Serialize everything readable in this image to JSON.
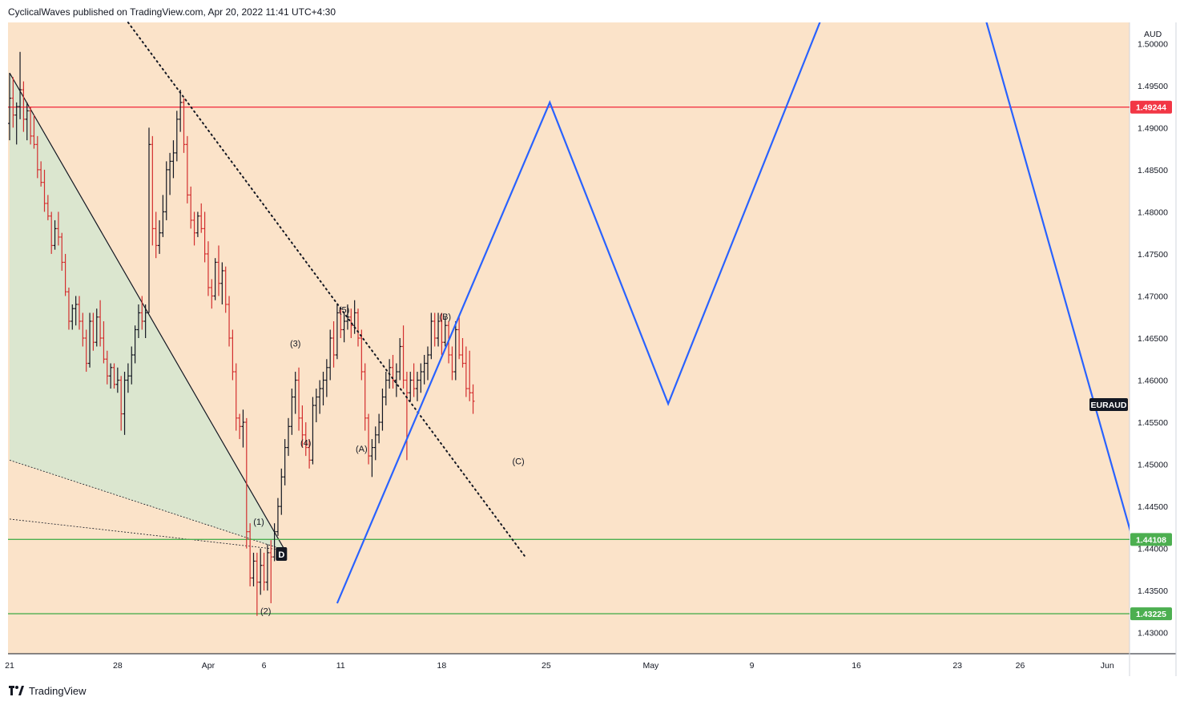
{
  "header": {
    "attribution": "CyclicalWaves published on TradingView.com, Apr 20, 2022 11:41 UTC+4:30"
  },
  "footer": {
    "brand": "TradingView"
  },
  "colors": {
    "background_plot": "#fbe3c9",
    "up_bar": "#131722",
    "down_bar": "#d32f2f",
    "red_level": "#f23645",
    "green_level": "#4caf50",
    "projection": "#2962ff",
    "wedge_fill": "#d7e6cf"
  },
  "chart_data": {
    "type": "ohlc",
    "symbol_tag": "EURAUD",
    "currency": "AUD",
    "y_range": [
      1.4275,
      1.5025
    ],
    "y_ticks": [
      "1.50000",
      "1.49500",
      "1.49000",
      "1.48500",
      "1.48000",
      "1.47500",
      "1.47000",
      "1.46500",
      "1.46000",
      "1.45500",
      "1.45000",
      "1.44500",
      "1.44000",
      "1.43500",
      "1.43000"
    ],
    "x_axis_labels": [
      {
        "label": "21",
        "x_index": 0
      },
      {
        "label": "28",
        "x_index": 31
      },
      {
        "label": "Apr",
        "x_index": 57
      },
      {
        "label": "6",
        "x_index": 73
      },
      {
        "label": "11",
        "x_index": 95
      },
      {
        "label": "18",
        "x_index": 124
      },
      {
        "label": "25",
        "x_index": 154
      },
      {
        "label": "May",
        "x_index": 184
      },
      {
        "label": "9",
        "x_index": 213
      },
      {
        "label": "16",
        "x_index": 243
      },
      {
        "label": "23",
        "x_index": 272
      },
      {
        "label": "26",
        "x_index": 290
      },
      {
        "label": "Jun",
        "x_index": 315
      }
    ],
    "price_levels": [
      {
        "name": "resistance",
        "value": 1.49244,
        "label": "1.49244",
        "color": "#f23645"
      },
      {
        "name": "support-upper",
        "value": 1.44108,
        "label": "1.44108",
        "color": "#4caf50"
      },
      {
        "name": "support-lower",
        "value": 1.43225,
        "label": "1.43225",
        "color": "#4caf50"
      }
    ],
    "wave_labels": [
      {
        "text": "(1)",
        "x_index": 71.5,
        "y": 1.4428
      },
      {
        "text": "(2)",
        "x_index": 73.5,
        "y": 1.4322
      },
      {
        "text": "(3)",
        "x_index": 82,
        "y": 1.464
      },
      {
        "text": "(4)",
        "x_index": 85,
        "y": 1.4522
      },
      {
        "text": "(5)",
        "x_index": 96,
        "y": 1.468
      },
      {
        "text": "(A)",
        "x_index": 101,
        "y": 1.4515
      },
      {
        "text": "(B)",
        "x_index": 125,
        "y": 1.4672
      },
      {
        "text": "(C)",
        "x_index": 146,
        "y": 1.45
      }
    ],
    "pattern_marker": {
      "text": "D",
      "x_index": 78,
      "y": 1.4393
    },
    "projection_path": [
      {
        "x_index": 94,
        "y": 1.4335
      },
      {
        "x_index": 155,
        "y": 1.493
      },
      {
        "x_index": 189,
        "y": 1.4572
      },
      {
        "x_index": 233,
        "y": 1.503
      },
      {
        "x_index": 280,
        "y": 1.503
      },
      {
        "x_index": 322,
        "y": 1.4415
      }
    ],
    "dotted_trendline": [
      {
        "x_index": 34,
        "y": 1.5025
      },
      {
        "x_index": 148,
        "y": 1.439
      }
    ],
    "wedge_upper": [
      {
        "x_index": 0,
        "y": 1.4965
      },
      {
        "x_index": 79,
        "y": 1.4398
      }
    ],
    "wedge_lower_1": [
      {
        "x_index": 0,
        "y": 1.4505
      },
      {
        "x_index": 79,
        "y": 1.4398
      }
    ],
    "wedge_lower_2": [
      {
        "x_index": 0,
        "y": 1.4435
      },
      {
        "x_index": 79,
        "y": 1.4398
      }
    ],
    "bars": [
      {
        "o": 1.4905,
        "h": 1.4965,
        "l": 1.4885,
        "c": 1.4935
      },
      {
        "o": 1.4935,
        "h": 1.496,
        "l": 1.49,
        "c": 1.4915
      },
      {
        "o": 1.4915,
        "h": 1.493,
        "l": 1.488,
        "c": 1.4925
      },
      {
        "o": 1.4925,
        "h": 1.499,
        "l": 1.491,
        "c": 1.4945
      },
      {
        "o": 1.4945,
        "h": 1.4955,
        "l": 1.4895,
        "c": 1.491
      },
      {
        "o": 1.491,
        "h": 1.493,
        "l": 1.4885,
        "c": 1.492
      },
      {
        "o": 1.492,
        "h": 1.4925,
        "l": 1.488,
        "c": 1.489
      },
      {
        "o": 1.489,
        "h": 1.4915,
        "l": 1.4875,
        "c": 1.488
      },
      {
        "o": 1.488,
        "h": 1.489,
        "l": 1.484,
        "c": 1.485
      },
      {
        "o": 1.485,
        "h": 1.486,
        "l": 1.483,
        "c": 1.4835
      },
      {
        "o": 1.4835,
        "h": 1.485,
        "l": 1.48,
        "c": 1.481
      },
      {
        "o": 1.481,
        "h": 1.482,
        "l": 1.479,
        "c": 1.4795
      },
      {
        "o": 1.4795,
        "h": 1.48,
        "l": 1.475,
        "c": 1.476
      },
      {
        "o": 1.476,
        "h": 1.479,
        "l": 1.4755,
        "c": 1.478
      },
      {
        "o": 1.478,
        "h": 1.48,
        "l": 1.476,
        "c": 1.477
      },
      {
        "o": 1.477,
        "h": 1.4775,
        "l": 1.473,
        "c": 1.474
      },
      {
        "o": 1.474,
        "h": 1.475,
        "l": 1.47,
        "c": 1.4705
      },
      {
        "o": 1.4705,
        "h": 1.471,
        "l": 1.466,
        "c": 1.467
      },
      {
        "o": 1.467,
        "h": 1.469,
        "l": 1.466,
        "c": 1.4685
      },
      {
        "o": 1.4685,
        "h": 1.47,
        "l": 1.4665,
        "c": 1.469
      },
      {
        "o": 1.469,
        "h": 1.47,
        "l": 1.466,
        "c": 1.467
      },
      {
        "o": 1.467,
        "h": 1.468,
        "l": 1.464,
        "c": 1.465
      },
      {
        "o": 1.465,
        "h": 1.466,
        "l": 1.461,
        "c": 1.462
      },
      {
        "o": 1.462,
        "h": 1.468,
        "l": 1.4615,
        "c": 1.467
      },
      {
        "o": 1.467,
        "h": 1.468,
        "l": 1.4635,
        "c": 1.4645
      },
      {
        "o": 1.4645,
        "h": 1.4685,
        "l": 1.464,
        "c": 1.4675
      },
      {
        "o": 1.4675,
        "h": 1.4695,
        "l": 1.464,
        "c": 1.465
      },
      {
        "o": 1.465,
        "h": 1.467,
        "l": 1.462,
        "c": 1.4625
      },
      {
        "o": 1.4625,
        "h": 1.4635,
        "l": 1.4595,
        "c": 1.4605
      },
      {
        "o": 1.4605,
        "h": 1.462,
        "l": 1.459,
        "c": 1.4615
      },
      {
        "o": 1.4615,
        "h": 1.462,
        "l": 1.459,
        "c": 1.4595
      },
      {
        "o": 1.4595,
        "h": 1.4615,
        "l": 1.4585,
        "c": 1.46
      },
      {
        "o": 1.46,
        "h": 1.4605,
        "l": 1.454,
        "c": 1.456
      },
      {
        "o": 1.456,
        "h": 1.461,
        "l": 1.4535,
        "c": 1.46
      },
      {
        "o": 1.46,
        "h": 1.462,
        "l": 1.4585,
        "c": 1.4605
      },
      {
        "o": 1.4605,
        "h": 1.464,
        "l": 1.4595,
        "c": 1.463
      },
      {
        "o": 1.463,
        "h": 1.4665,
        "l": 1.462,
        "c": 1.466
      },
      {
        "o": 1.466,
        "h": 1.469,
        "l": 1.465,
        "c": 1.468
      },
      {
        "o": 1.468,
        "h": 1.47,
        "l": 1.466,
        "c": 1.467
      },
      {
        "o": 1.467,
        "h": 1.469,
        "l": 1.465,
        "c": 1.468
      },
      {
        "o": 1.468,
        "h": 1.49,
        "l": 1.468,
        "c": 1.488
      },
      {
        "o": 1.488,
        "h": 1.489,
        "l": 1.476,
        "c": 1.478
      },
      {
        "o": 1.478,
        "h": 1.48,
        "l": 1.4745,
        "c": 1.476
      },
      {
        "o": 1.476,
        "h": 1.479,
        "l": 1.475,
        "c": 1.4775
      },
      {
        "o": 1.4775,
        "h": 1.482,
        "l": 1.477,
        "c": 1.48
      },
      {
        "o": 1.48,
        "h": 1.486,
        "l": 1.479,
        "c": 1.485
      },
      {
        "o": 1.485,
        "h": 1.487,
        "l": 1.482,
        "c": 1.486
      },
      {
        "o": 1.486,
        "h": 1.4885,
        "l": 1.484,
        "c": 1.487
      },
      {
        "o": 1.487,
        "h": 1.492,
        "l": 1.486,
        "c": 1.491
      },
      {
        "o": 1.491,
        "h": 1.4945,
        "l": 1.4895,
        "c": 1.493
      },
      {
        "o": 1.493,
        "h": 1.4935,
        "l": 1.487,
        "c": 1.488
      },
      {
        "o": 1.488,
        "h": 1.489,
        "l": 1.481,
        "c": 1.482
      },
      {
        "o": 1.482,
        "h": 1.483,
        "l": 1.478,
        "c": 1.479
      },
      {
        "o": 1.479,
        "h": 1.48,
        "l": 1.476,
        "c": 1.4775
      },
      {
        "o": 1.4775,
        "h": 1.48,
        "l": 1.477,
        "c": 1.4795
      },
      {
        "o": 1.4795,
        "h": 1.481,
        "l": 1.4775,
        "c": 1.478
      },
      {
        "o": 1.478,
        "h": 1.48,
        "l": 1.474,
        "c": 1.475
      },
      {
        "o": 1.475,
        "h": 1.4765,
        "l": 1.47,
        "c": 1.471
      },
      {
        "o": 1.471,
        "h": 1.472,
        "l": 1.4685,
        "c": 1.47
      },
      {
        "o": 1.47,
        "h": 1.4745,
        "l": 1.4695,
        "c": 1.474
      },
      {
        "o": 1.474,
        "h": 1.476,
        "l": 1.47,
        "c": 1.4715
      },
      {
        "o": 1.4715,
        "h": 1.474,
        "l": 1.469,
        "c": 1.473
      },
      {
        "o": 1.473,
        "h": 1.4735,
        "l": 1.468,
        "c": 1.469
      },
      {
        "o": 1.469,
        "h": 1.47,
        "l": 1.464,
        "c": 1.465
      },
      {
        "o": 1.465,
        "h": 1.466,
        "l": 1.46,
        "c": 1.461
      },
      {
        "o": 1.461,
        "h": 1.462,
        "l": 1.454,
        "c": 1.4555
      },
      {
        "o": 1.4555,
        "h": 1.456,
        "l": 1.453,
        "c": 1.4545
      },
      {
        "o": 1.4545,
        "h": 1.4565,
        "l": 1.452,
        "c": 1.455
      },
      {
        "o": 1.455,
        "h": 1.4555,
        "l": 1.44,
        "c": 1.442
      },
      {
        "o": 1.442,
        "h": 1.443,
        "l": 1.4355,
        "c": 1.4365
      },
      {
        "o": 1.4365,
        "h": 1.4395,
        "l": 1.4355,
        "c": 1.4385
      },
      {
        "o": 1.4385,
        "h": 1.4395,
        "l": 1.432,
        "c": 1.436
      },
      {
        "o": 1.436,
        "h": 1.44,
        "l": 1.4345,
        "c": 1.438
      },
      {
        "o": 1.438,
        "h": 1.4395,
        "l": 1.435,
        "c": 1.436
      },
      {
        "o": 1.436,
        "h": 1.4405,
        "l": 1.435,
        "c": 1.4395
      },
      {
        "o": 1.4395,
        "h": 1.441,
        "l": 1.4335,
        "c": 1.439
      },
      {
        "o": 1.439,
        "h": 1.443,
        "l": 1.4385,
        "c": 1.442
      },
      {
        "o": 1.442,
        "h": 1.446,
        "l": 1.4415,
        "c": 1.445
      },
      {
        "o": 1.445,
        "h": 1.4495,
        "l": 1.444,
        "c": 1.4485
      },
      {
        "o": 1.4485,
        "h": 1.453,
        "l": 1.4475,
        "c": 1.452
      },
      {
        "o": 1.452,
        "h": 1.4555,
        "l": 1.451,
        "c": 1.4545
      },
      {
        "o": 1.4545,
        "h": 1.459,
        "l": 1.4535,
        "c": 1.458
      },
      {
        "o": 1.458,
        "h": 1.461,
        "l": 1.456,
        "c": 1.46
      },
      {
        "o": 1.46,
        "h": 1.4615,
        "l": 1.454,
        "c": 1.4555
      },
      {
        "o": 1.4555,
        "h": 1.457,
        "l": 1.452,
        "c": 1.4535
      },
      {
        "o": 1.4535,
        "h": 1.455,
        "l": 1.451,
        "c": 1.452
      },
      {
        "o": 1.452,
        "h": 1.453,
        "l": 1.4495,
        "c": 1.4505
      },
      {
        "o": 1.4505,
        "h": 1.458,
        "l": 1.45,
        "c": 1.457
      },
      {
        "o": 1.457,
        "h": 1.459,
        "l": 1.455,
        "c": 1.458
      },
      {
        "o": 1.458,
        "h": 1.46,
        "l": 1.456,
        "c": 1.459
      },
      {
        "o": 1.459,
        "h": 1.461,
        "l": 1.457,
        "c": 1.46
      },
      {
        "o": 1.46,
        "h": 1.4625,
        "l": 1.458,
        "c": 1.4615
      },
      {
        "o": 1.4615,
        "h": 1.466,
        "l": 1.46,
        "c": 1.465
      },
      {
        "o": 1.465,
        "h": 1.467,
        "l": 1.4615,
        "c": 1.463
      },
      {
        "o": 1.463,
        "h": 1.469,
        "l": 1.4625,
        "c": 1.468
      },
      {
        "o": 1.468,
        "h": 1.4685,
        "l": 1.465,
        "c": 1.466
      },
      {
        "o": 1.466,
        "h": 1.468,
        "l": 1.4645,
        "c": 1.467
      },
      {
        "o": 1.467,
        "h": 1.469,
        "l": 1.466,
        "c": 1.4675
      },
      {
        "o": 1.4675,
        "h": 1.4685,
        "l": 1.465,
        "c": 1.4665
      },
      {
        "o": 1.4665,
        "h": 1.4695,
        "l": 1.4655,
        "c": 1.468
      },
      {
        "o": 1.468,
        "h": 1.4685,
        "l": 1.464,
        "c": 1.465
      },
      {
        "o": 1.465,
        "h": 1.466,
        "l": 1.46,
        "c": 1.461
      },
      {
        "o": 1.461,
        "h": 1.462,
        "l": 1.454,
        "c": 1.4555
      },
      {
        "o": 1.4555,
        "h": 1.456,
        "l": 1.45,
        "c": 1.451
      },
      {
        "o": 1.451,
        "h": 1.453,
        "l": 1.4485,
        "c": 1.452
      },
      {
        "o": 1.452,
        "h": 1.4545,
        "l": 1.4505,
        "c": 1.4535
      },
      {
        "o": 1.4535,
        "h": 1.456,
        "l": 1.4525,
        "c": 1.455
      },
      {
        "o": 1.455,
        "h": 1.459,
        "l": 1.454,
        "c": 1.458
      },
      {
        "o": 1.458,
        "h": 1.461,
        "l": 1.457,
        "c": 1.46
      },
      {
        "o": 1.46,
        "h": 1.4625,
        "l": 1.459,
        "c": 1.4615
      },
      {
        "o": 1.4615,
        "h": 1.463,
        "l": 1.459,
        "c": 1.46
      },
      {
        "o": 1.46,
        "h": 1.462,
        "l": 1.458,
        "c": 1.461
      },
      {
        "o": 1.461,
        "h": 1.465,
        "l": 1.46,
        "c": 1.464
      },
      {
        "o": 1.464,
        "h": 1.4665,
        "l": 1.459,
        "c": 1.46
      },
      {
        "o": 1.46,
        "h": 1.461,
        "l": 1.4505,
        "c": 1.4585
      },
      {
        "o": 1.4585,
        "h": 1.461,
        "l": 1.4575,
        "c": 1.46
      },
      {
        "o": 1.46,
        "h": 1.462,
        "l": 1.458,
        "c": 1.459
      },
      {
        "o": 1.459,
        "h": 1.461,
        "l": 1.4575,
        "c": 1.46
      },
      {
        "o": 1.46,
        "h": 1.462,
        "l": 1.4585,
        "c": 1.461
      },
      {
        "o": 1.461,
        "h": 1.463,
        "l": 1.4595,
        "c": 1.462
      },
      {
        "o": 1.462,
        "h": 1.464,
        "l": 1.46,
        "c": 1.463
      },
      {
        "o": 1.463,
        "h": 1.468,
        "l": 1.4625,
        "c": 1.467
      },
      {
        "o": 1.467,
        "h": 1.468,
        "l": 1.464,
        "c": 1.465
      },
      {
        "o": 1.465,
        "h": 1.468,
        "l": 1.464,
        "c": 1.467
      },
      {
        "o": 1.467,
        "h": 1.468,
        "l": 1.463,
        "c": 1.4645
      },
      {
        "o": 1.4645,
        "h": 1.4675,
        "l": 1.464,
        "c": 1.4665
      },
      {
        "o": 1.4665,
        "h": 1.467,
        "l": 1.462,
        "c": 1.463
      },
      {
        "o": 1.463,
        "h": 1.464,
        "l": 1.46,
        "c": 1.461
      },
      {
        "o": 1.461,
        "h": 1.467,
        "l": 1.46,
        "c": 1.466
      },
      {
        "o": 1.466,
        "h": 1.4675,
        "l": 1.4625,
        "c": 1.463
      },
      {
        "o": 1.463,
        "h": 1.465,
        "l": 1.4615,
        "c": 1.462
      },
      {
        "o": 1.462,
        "h": 1.464,
        "l": 1.458,
        "c": 1.459
      },
      {
        "o": 1.459,
        "h": 1.4635,
        "l": 1.4575,
        "c": 1.4585
      },
      {
        "o": 1.4585,
        "h": 1.4595,
        "l": 1.456,
        "c": 1.4575
      }
    ]
  }
}
